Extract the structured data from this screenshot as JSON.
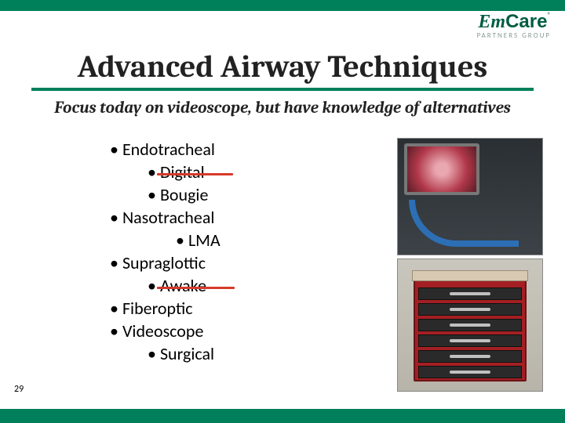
{
  "colors": {
    "brand_green": "#00805a",
    "brand_dark": "#005c41",
    "strike": "#d63a2b",
    "topbar_bg": "#00805a",
    "bottombar_bg": "#00805a"
  },
  "logo": {
    "left": "Em",
    "right": "Care",
    "trademark": "®",
    "tagline": "PARTNERS GROUP"
  },
  "title": "Advanced Airway Techniques",
  "subtitle": "Focus today on videoscope, but have knowledge of alternatives",
  "bullets": [
    {
      "text": "Endotracheal",
      "indent": 0,
      "strike": false
    },
    {
      "text": "Digital",
      "indent": 1,
      "strike": true
    },
    {
      "text": "Bougie",
      "indent": 1,
      "strike": false
    },
    {
      "text": "Nasotracheal",
      "indent": 0,
      "strike": false
    },
    {
      "text": "LMA",
      "indent": 2,
      "strike": false
    },
    {
      "text": "Supraglottic",
      "indent": 0,
      "strike": false
    },
    {
      "text": "Awake",
      "indent": 1,
      "strike": true
    },
    {
      "text": "Fiberoptic",
      "indent": 0,
      "strike": false
    },
    {
      "text": "Videoscope",
      "indent": 0,
      "strike": false
    },
    {
      "text": "Surgical",
      "indent": 1,
      "strike": false
    }
  ],
  "page_number": "29",
  "images": {
    "top_alt": "videoscope monitor with blue cable",
    "bottom_alt": "red medical supply cart"
  }
}
